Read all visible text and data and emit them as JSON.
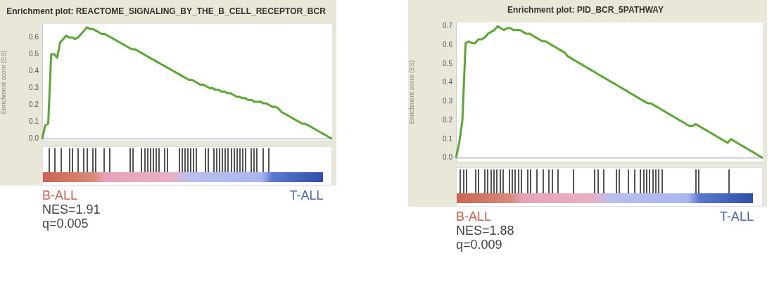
{
  "chart_data": [
    {
      "type": "line",
      "title": "Enrichment plot: REACTOME_SIGNALING_BY_THE_B_CELL_RECEPTOR_BCR",
      "ylabel": "Enrichment score (ES)",
      "tick_labels": "y",
      "grid": false,
      "legend": false,
      "marker": "none",
      "line_style": "solid",
      "categories": [
        null,
        null,
        null,
        null,
        null,
        null,
        null,
        null,
        null,
        null,
        null,
        null,
        null,
        null,
        null,
        null,
        null,
        null,
        null,
        null,
        null,
        null,
        null,
        null,
        null,
        null,
        null,
        null,
        null,
        null,
        null,
        null,
        null,
        null,
        null,
        null,
        null,
        null,
        null,
        null,
        null,
        null,
        null,
        null,
        null,
        null,
        null,
        null,
        null,
        null,
        null,
        null,
        null,
        null,
        null,
        null,
        null,
        null,
        null,
        null,
        null,
        null,
        null,
        null,
        null,
        null,
        null,
        null,
        null,
        null,
        null,
        null,
        null,
        null,
        null,
        null,
        null,
        null,
        null,
        null,
        null,
        null,
        null,
        null,
        null,
        null,
        null,
        null,
        null,
        null,
        null,
        null,
        null,
        null,
        null,
        null,
        null,
        null
      ],
      "ylim": [
        -0.01,
        0.68
      ],
      "yticks": [
        {
          "value": 0,
          "label": "0.0"
        },
        0.1,
        0.2,
        0.3,
        0.4,
        0.5,
        0.6
      ],
      "ref_lines": [
        {
          "axis": "y",
          "value": 0,
          "color": "#b8bedc"
        }
      ],
      "annotations": [
        "B-ALL",
        "T-ALL",
        "NES=1.91",
        "q=0.005"
      ],
      "series": [
        {
          "color": "#5aa832",
          "values": [
            0,
            0.08,
            0.09,
            0.5,
            0.5,
            0.48,
            0.57,
            0.59,
            0.61,
            0.6,
            0.6,
            0.59,
            0.6,
            0.62,
            0.64,
            0.66,
            0.65,
            0.65,
            0.64,
            0.63,
            0.62,
            0.62,
            0.61,
            0.6,
            0.59,
            0.58,
            0.57,
            0.56,
            0.55,
            0.54,
            0.53,
            0.53,
            0.52,
            0.51,
            0.5,
            0.49,
            0.48,
            0.47,
            0.46,
            0.45,
            0.44,
            0.43,
            0.42,
            0.41,
            0.4,
            0.39,
            0.38,
            0.37,
            0.36,
            0.35,
            0.35,
            0.34,
            0.33,
            0.32,
            0.32,
            0.31,
            0.3,
            0.3,
            0.29,
            0.29,
            0.28,
            0.28,
            0.27,
            0.27,
            0.26,
            0.25,
            0.25,
            0.24,
            0.24,
            0.23,
            0.23,
            0.22,
            0.22,
            0.22,
            0.21,
            0.21,
            0.2,
            0.19,
            0.19,
            0.18,
            0.16,
            0.15,
            0.14,
            0.13,
            0.12,
            0.11,
            0.1,
            0.09,
            0.09,
            0.08,
            0.07,
            0.06,
            0.05,
            0.04,
            0.03,
            0.02,
            0.01,
            0
          ]
        }
      ]
    },
    {
      "type": "line",
      "title": "Enrichment plot: PID_BCR_5PATHWAY",
      "ylabel": "Enrichment score (ES)",
      "tick_labels": "y",
      "grid": false,
      "legend": false,
      "marker": "none",
      "line_style": "solid",
      "categories": [
        null,
        null,
        null,
        null,
        null,
        null,
        null,
        null,
        null,
        null,
        null,
        null,
        null,
        null,
        null,
        null,
        null,
        null,
        null,
        null,
        null,
        null,
        null,
        null,
        null,
        null,
        null,
        null,
        null,
        null,
        null,
        null,
        null,
        null,
        null,
        null,
        null,
        null,
        null,
        null,
        null,
        null,
        null,
        null,
        null,
        null,
        null,
        null,
        null,
        null,
        null,
        null,
        null,
        null,
        null,
        null,
        null,
        null,
        null,
        null,
        null,
        null,
        null,
        null,
        null,
        null,
        null,
        null,
        null,
        null,
        null,
        null,
        null,
        null,
        null,
        null,
        null,
        null,
        null,
        null,
        null,
        null,
        null,
        null,
        null,
        null,
        null,
        null,
        null,
        null,
        null,
        null,
        null,
        null,
        null,
        null,
        null
      ],
      "ylim": [
        -0.02,
        0.72
      ],
      "yticks": [
        {
          "value": 0,
          "label": "0.0"
        },
        0.1,
        0.2,
        0.3,
        0.4,
        0.5,
        0.6,
        0.7
      ],
      "ref_lines": [
        {
          "axis": "y",
          "value": 0,
          "color": "#b8bedc"
        }
      ],
      "annotations": [
        "B-ALL",
        "T-ALL",
        "NES=1.88",
        "q=0.009"
      ],
      "series": [
        {
          "color": "#5aa832",
          "values": [
            0,
            0.08,
            0.2,
            0.61,
            0.62,
            0.61,
            0.61,
            0.63,
            0.63,
            0.64,
            0.66,
            0.67,
            0.68,
            0.7,
            0.69,
            0.68,
            0.69,
            0.69,
            0.68,
            0.68,
            0.68,
            0.67,
            0.66,
            0.66,
            0.65,
            0.64,
            0.63,
            0.62,
            0.62,
            0.61,
            0.6,
            0.59,
            0.58,
            0.57,
            0.56,
            0.54,
            0.53,
            0.52,
            0.51,
            0.5,
            0.49,
            0.48,
            0.47,
            0.46,
            0.45,
            0.44,
            0.43,
            0.42,
            0.41,
            0.4,
            0.39,
            0.38,
            0.37,
            0.36,
            0.35,
            0.34,
            0.33,
            0.32,
            0.31,
            0.3,
            0.29,
            0.29,
            0.28,
            0.27,
            0.26,
            0.25,
            0.24,
            0.23,
            0.22,
            0.21,
            0.2,
            0.19,
            0.18,
            0.17,
            0.17,
            0.18,
            0.17,
            0.16,
            0.15,
            0.14,
            0.13,
            0.12,
            0.11,
            0.1,
            0.09,
            0.08,
            0.1,
            0.09,
            0.08,
            0.07,
            0.06,
            0.05,
            0.04,
            0.03,
            0.02,
            0.01,
            0
          ]
        }
      ]
    }
  ]
}
